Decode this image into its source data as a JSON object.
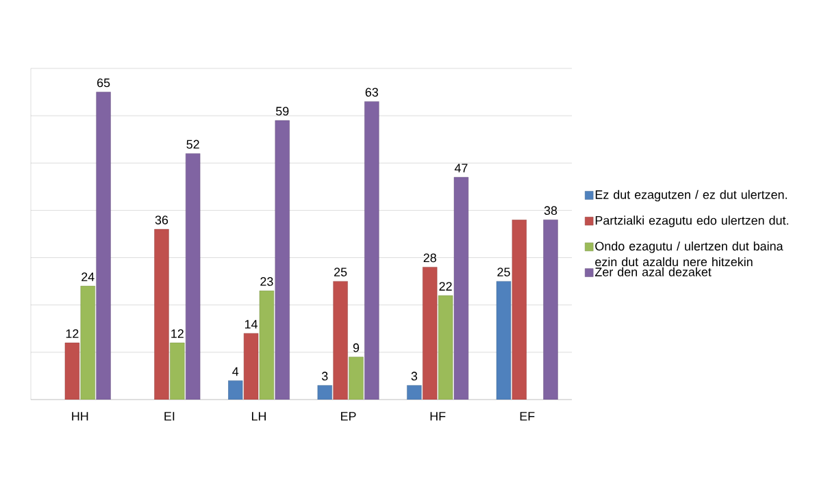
{
  "chart_data": {
    "type": "bar",
    "categories": [
      "HH",
      "EI",
      "LH",
      "EP",
      "HF",
      "EF"
    ],
    "series": [
      {
        "name": "Ez dut ezagutzen / ez dut ulertzen.",
        "color": "#4f81bd",
        "values": [
          null,
          null,
          4,
          3,
          3,
          25
        ],
        "value_labels": [
          null,
          null,
          "4",
          "3",
          "3",
          "25"
        ]
      },
      {
        "name": "Partzialki ezagutu edo ulertzen dut.",
        "color": "#c0504d",
        "values": [
          12,
          36,
          14,
          25,
          28,
          38
        ],
        "value_labels": [
          "12",
          "36",
          "14",
          "25",
          "28",
          null
        ]
      },
      {
        "name": "Ondo ezagutu / ulertzen dut baina ezin dut azaldu nere hitzekin",
        "color": "#9bbb59",
        "values": [
          24,
          12,
          23,
          9,
          22,
          null
        ],
        "value_labels": [
          "24",
          "12",
          "23",
          "9",
          "22",
          null
        ]
      },
      {
        "name": "Zer den azal dezaket",
        "color": "#8064a2",
        "values": [
          65,
          52,
          59,
          63,
          47,
          38
        ],
        "value_labels": [
          "65",
          "52",
          "59",
          "63",
          "47",
          "38"
        ]
      }
    ],
    "ylim": [
      0,
      70
    ],
    "yticks": [
      {
        "value": 0,
        "label": null
      },
      {
        "value": 10,
        "label": null
      },
      {
        "value": 20,
        "label": null
      },
      {
        "value": 30,
        "label": null
      },
      {
        "value": 40,
        "label": null
      },
      {
        "value": 50,
        "label": null
      },
      {
        "value": 60,
        "label": null
      },
      {
        "value": 70,
        "label": null
      }
    ],
    "grid": "y",
    "legend": "right",
    "tick_labels": "x"
  }
}
